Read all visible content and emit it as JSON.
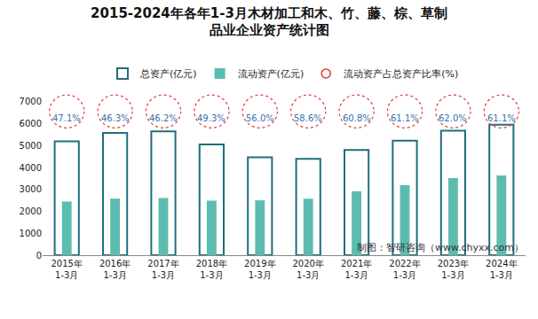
{
  "chart_data": {
    "type": "bar",
    "title": "2015-2024年各年1-3月木材加工和木、竹、藤、棕、草制\n品业企业资产统计图",
    "categories": [
      "2015年1-3月",
      "2016年1-3月",
      "2017年1-3月",
      "2018年1-3月",
      "2019年1-3月",
      "2020年1-3月",
      "2021年1-3月",
      "2022年1-3月",
      "2023年1-3月",
      "2024年1-3月"
    ],
    "series": [
      {
        "name": "总资产(亿元)",
        "type": "bar",
        "color": "#1e6e7e",
        "marker": "hollow",
        "values": [
          5200,
          5580,
          5650,
          5050,
          4470,
          4400,
          4800,
          5230,
          5680,
          5950
        ]
      },
      {
        "name": "流动资产(亿元)",
        "type": "bar",
        "color": "#5cbcb0",
        "marker": "filled",
        "values": [
          2450,
          2584,
          2610,
          2490,
          2503,
          2578,
          2918,
          3196,
          3522,
          3635
        ]
      },
      {
        "name": "流动资产占总资产比率(%)",
        "type": "label",
        "color": "#e03a3a",
        "marker": "circle",
        "line_style": "dotted",
        "values": [
          47.1,
          46.3,
          46.2,
          49.3,
          56.0,
          58.6,
          60.8,
          61.1,
          62.0,
          61.1
        ],
        "value_labels": [
          "47.1%",
          "46.3%",
          "46.2%",
          "49.3%",
          "56.0%",
          "58.6%",
          "60.8%",
          "61.1%",
          "62.0%",
          "61.1%"
        ]
      }
    ],
    "ylim": [
      0,
      7000
    ],
    "yticks": [
      0,
      1000,
      2000,
      3000,
      4000,
      5000,
      6000,
      7000
    ],
    "grid": false,
    "legend": "top",
    "data_labels": true,
    "source": "制图：智研咨询（www.chyxx.com）"
  }
}
